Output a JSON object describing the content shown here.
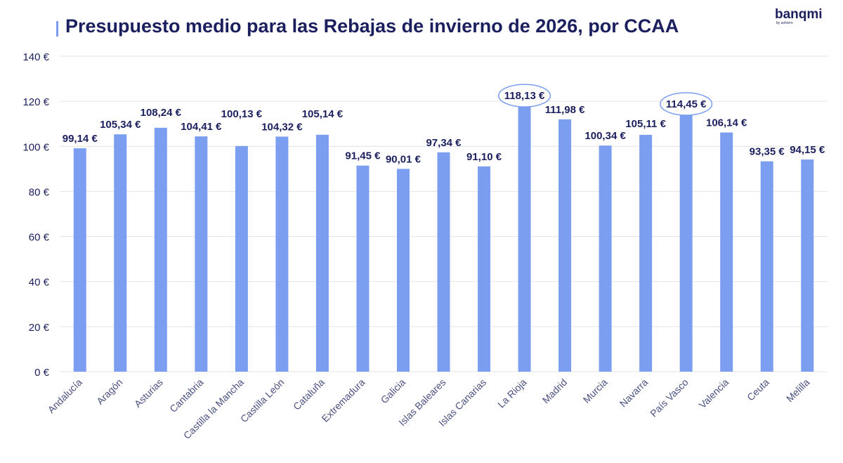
{
  "title": "Presupuesto medio para las Rebajas de invierno de 2026, por CCAA",
  "logo": {
    "name": "banqmi",
    "sub": "by ashorro"
  },
  "colors": {
    "bar": "#7b9ef0",
    "text": "#1b1f5e",
    "grid": "#e3e3e3",
    "highlight": "#7b9ef0"
  },
  "chart_data": {
    "type": "bar",
    "title": "Presupuesto medio para las Rebajas de invierno de 2026, por CCAA",
    "categories": [
      "Andalucía",
      "Aragón",
      "Asturias",
      "Cantabria",
      "Castilla la Mancha",
      "Castilla León",
      "Cataluña",
      "Extremadura",
      "Galicia",
      "Islas Baleares",
      "Islas Canarias",
      "La Rioja",
      "Madrid",
      "Murcia",
      "Navarra",
      "País Vasco",
      "Valencia",
      "Ceuta",
      "Melilla"
    ],
    "values": [
      99.14,
      105.34,
      108.24,
      104.41,
      100.13,
      104.32,
      105.14,
      91.45,
      90.01,
      97.34,
      91.1,
      118.13,
      111.98,
      100.34,
      105.11,
      114.45,
      106.14,
      93.35,
      94.15
    ],
    "data_labels": [
      "99,14 €",
      "105,34 €",
      "108,24 €",
      "104,41 €",
      "100,13 €",
      "104,32 €",
      "105,14 €",
      "91,45 €",
      "90,01 €",
      "97,34 €",
      "91,10 €",
      "118,13 €",
      "111,98 €",
      "100,34 €",
      "105,11 €",
      "114,45 €",
      "106,14 €",
      "93,35 €",
      "94,15 €"
    ],
    "highlighted": [
      "La Rioja",
      "País Vasco"
    ],
    "ylim": [
      0,
      140
    ],
    "yticks": [
      0,
      20,
      40,
      60,
      80,
      100,
      120,
      140
    ],
    "ytick_labels": [
      "0 €",
      "20 €",
      "40 €",
      "60 €",
      "80 €",
      "100 €",
      "120 €",
      "140 €"
    ],
    "grid": true,
    "legend": "none"
  }
}
